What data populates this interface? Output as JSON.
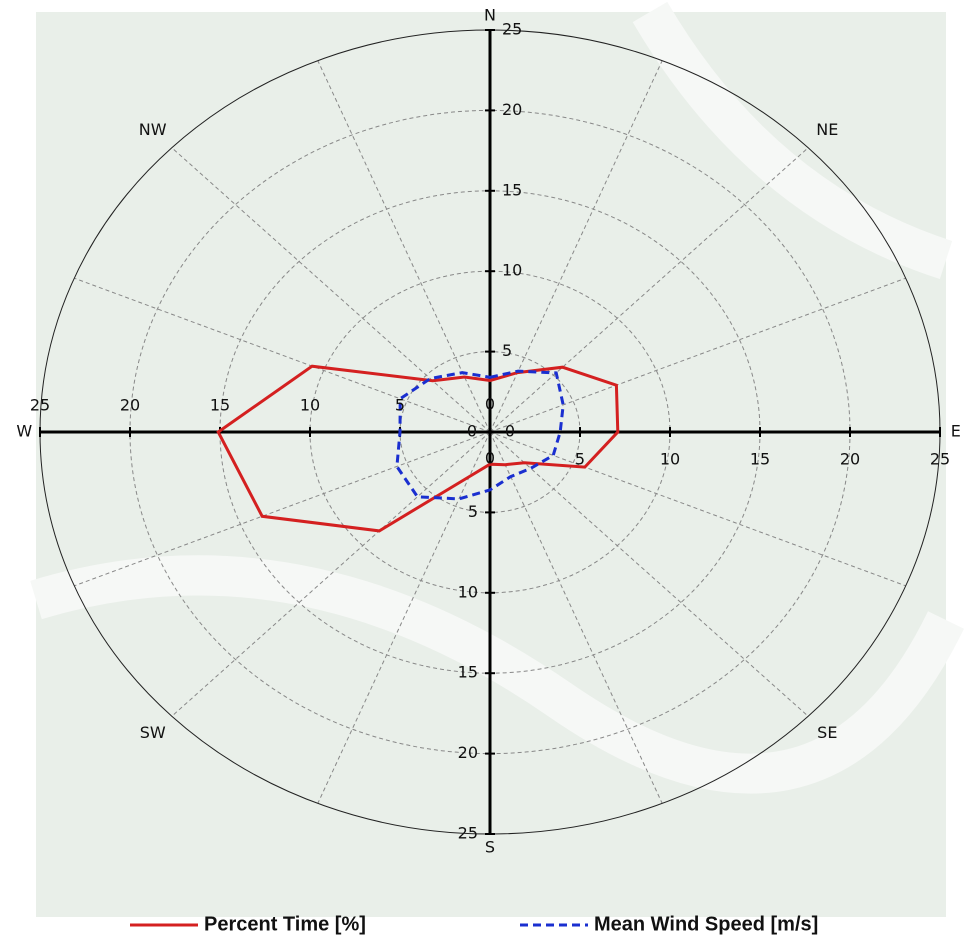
{
  "chart_data": {
    "type": "polar",
    "categories": [
      "N",
      null,
      "NE",
      null,
      "E",
      null,
      "SE",
      null,
      "S",
      null,
      "SW",
      null,
      "W",
      null,
      "NW",
      null
    ],
    "rlim": [
      0,
      25
    ],
    "rticks": [
      0,
      5,
      10,
      15,
      20,
      25
    ],
    "grid": true,
    "legend": "bottom",
    "series": [
      {
        "name": "Percent Time [%]",
        "color": "#d42020",
        "linestyle": "solid",
        "values": [
          3.2,
          4.0,
          5.7,
          7.6,
          7.1,
          5.7,
          2.7,
          2.2,
          2.0,
          3.0,
          8.7,
          13.7,
          15.1,
          10.7,
          4.5,
          3.7
        ]
      },
      {
        "name": "Mean Wind Speed [m/s]",
        "color": "#1a2fd0",
        "linestyle": "dashed",
        "values": [
          3.4,
          4.1,
          5.2,
          4.4,
          3.9,
          3.8,
          3.2,
          3.0,
          3.6,
          4.5,
          5.7,
          5.6,
          5.0,
          5.4,
          4.7,
          4.0
        ]
      }
    ]
  }
}
